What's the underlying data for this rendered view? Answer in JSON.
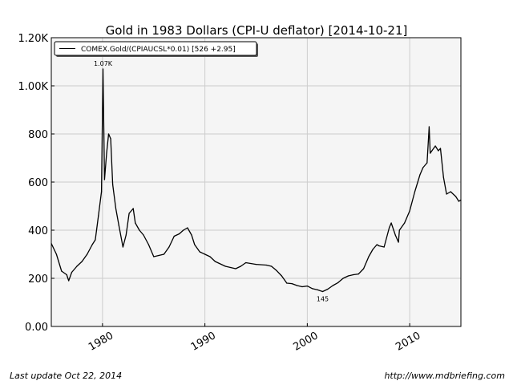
{
  "chart_data": {
    "type": "line",
    "title": "Gold in 1983 Dollars (CPI-U deflator)  [2014-10-21]",
    "xlabel": "",
    "ylabel": "",
    "xlim": [
      1975,
      2015
    ],
    "ylim": [
      0,
      1200
    ],
    "x_ticks": [
      1980,
      1990,
      2000,
      2010
    ],
    "x_tick_labels": [
      "1980",
      "1990",
      "2000",
      "2010"
    ],
    "y_ticks": [
      0,
      200,
      400,
      600,
      800,
      1000,
      1200
    ],
    "y_tick_labels": [
      "0.00",
      "200",
      "400",
      "600",
      "800",
      "1.00K",
      "1.20K"
    ],
    "grid": true,
    "legend_position": "top-left",
    "series": [
      {
        "name": "COMEX.Gold/(CPIAUCSL*0.01) [526 +2.95]",
        "color": "#000000",
        "x": [
          1975.0,
          1975.5,
          1976.0,
          1976.5,
          1976.7,
          1977.0,
          1977.5,
          1978.0,
          1978.5,
          1979.0,
          1979.3,
          1979.6,
          1979.9,
          1980.05,
          1980.2,
          1980.4,
          1980.6,
          1980.8,
          1981.0,
          1981.3,
          1981.6,
          1982.0,
          1982.3,
          1982.6,
          1983.0,
          1983.2,
          1983.6,
          1984.0,
          1984.5,
          1985.0,
          1985.5,
          1986.0,
          1986.5,
          1987.0,
          1987.5,
          1987.9,
          1988.3,
          1988.7,
          1989.0,
          1989.5,
          1990.0,
          1990.5,
          1991.0,
          1992.0,
          1993.0,
          1993.5,
          1994.0,
          1995.0,
          1996.0,
          1996.5,
          1997.0,
          1997.5,
          1998.0,
          1998.5,
          1999.0,
          1999.5,
          2000.0,
          2000.5,
          2001.0,
          2001.5,
          2002.0,
          2002.5,
          2003.0,
          2003.5,
          2004.0,
          2004.5,
          2005.0,
          2005.5,
          2006.0,
          2006.4,
          2006.8,
          2007.0,
          2007.5,
          2008.0,
          2008.2,
          2008.6,
          2008.9,
          2009.0,
          2009.5,
          2010.0,
          2010.5,
          2011.0,
          2011.3,
          2011.7,
          2011.9,
          2012.0,
          2012.5,
          2012.8,
          2013.0,
          2013.3,
          2013.6,
          2014.0,
          2014.5,
          2014.8,
          2015.0
        ],
        "y": [
          345,
          300,
          230,
          215,
          190,
          225,
          250,
          270,
          300,
          340,
          360,
          460,
          560,
          1070,
          610,
          720,
          800,
          780,
          590,
          490,
          420,
          330,
          380,
          470,
          490,
          430,
          400,
          380,
          340,
          290,
          295,
          300,
          330,
          375,
          385,
          400,
          410,
          380,
          340,
          310,
          300,
          290,
          270,
          250,
          240,
          250,
          265,
          258,
          255,
          250,
          232,
          210,
          180,
          178,
          170,
          165,
          168,
          157,
          152,
          145,
          155,
          170,
          182,
          200,
          210,
          215,
          218,
          240,
          290,
          320,
          340,
          335,
          330,
          410,
          430,
          380,
          350,
          400,
          430,
          480,
          560,
          630,
          660,
          680,
          830,
          720,
          750,
          730,
          740,
          620,
          550,
          560,
          540,
          520,
          526
        ],
        "annotations": [
          {
            "label": "1.07K",
            "x": 1980.05,
            "y": 1070
          },
          {
            "label": "145",
            "x": 2001.5,
            "y": 145
          }
        ]
      }
    ]
  },
  "footer": {
    "left": "Last update Oct 22, 2014",
    "right": "http://www.mdbriefing.com"
  }
}
